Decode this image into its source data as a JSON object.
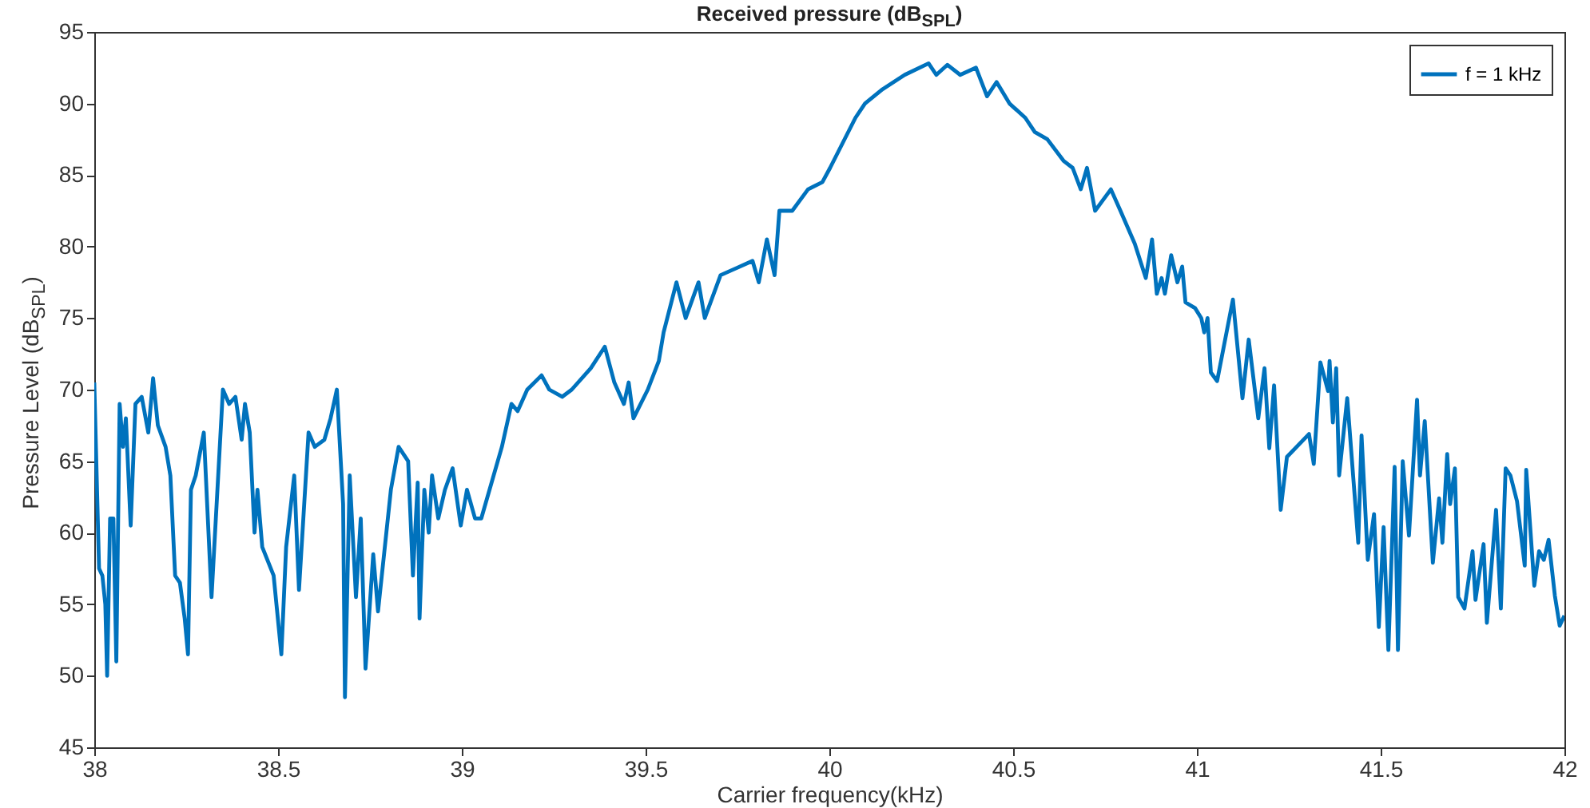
{
  "chart_data": {
    "type": "line",
    "title": "Received pressure (dB$_{SPL}$)",
    "xlabel": "Carrier frequency(kHz)",
    "ylabel": "Pressure Level (dB$_{SPL}$)",
    "xlim": [
      38,
      42
    ],
    "xticks": [
      38,
      38.5,
      39,
      39.5,
      40,
      40.5,
      41,
      41.5,
      42
    ],
    "ylim": [
      45,
      95
    ],
    "yticks": [
      45,
      50,
      55,
      60,
      65,
      70,
      75,
      80,
      85,
      90,
      95
    ],
    "legend": "top right",
    "grid": false,
    "series": [
      {
        "name": "f = 1 kHz",
        "color": "#0072bd",
        "x": [
          38.0,
          38.013,
          38.022,
          38.03,
          38.035,
          38.043,
          38.052,
          38.06,
          38.069,
          38.078,
          38.086,
          38.099,
          38.112,
          38.129,
          38.147,
          38.16,
          38.173,
          38.194,
          38.207,
          38.22,
          38.233,
          38.246,
          38.255,
          38.263,
          38.276,
          38.298,
          38.319,
          38.35,
          38.367,
          38.384,
          38.401,
          38.41,
          38.423,
          38.436,
          38.444,
          38.457,
          38.488,
          38.509,
          38.522,
          38.544,
          38.557,
          38.583,
          38.6,
          38.626,
          38.643,
          38.66,
          38.677,
          38.682,
          38.695,
          38.712,
          38.725,
          38.738,
          38.759,
          38.772,
          38.807,
          38.828,
          38.854,
          38.867,
          38.88,
          38.885,
          38.898,
          38.91,
          38.919,
          38.936,
          38.954,
          38.975,
          38.997,
          39.014,
          39.036,
          39.053,
          39.109,
          39.135,
          39.152,
          39.178,
          39.217,
          39.238,
          39.273,
          39.299,
          39.351,
          39.389,
          39.415,
          39.441,
          39.454,
          39.467,
          39.506,
          39.536,
          39.549,
          39.584,
          39.609,
          39.644,
          39.661,
          39.704,
          39.748,
          39.791,
          39.808,
          39.83,
          39.851,
          39.864,
          39.899,
          39.942,
          39.981,
          40.002,
          40.071,
          40.097,
          40.145,
          40.205,
          40.27,
          40.291,
          40.321,
          40.356,
          40.399,
          40.429,
          40.455,
          40.49,
          40.533,
          40.559,
          40.593,
          40.637,
          40.662,
          40.684,
          40.701,
          40.723,
          40.766,
          40.792,
          40.831,
          40.861,
          40.878,
          40.891,
          40.904,
          40.913,
          40.93,
          40.947,
          40.96,
          40.969,
          40.995,
          41.012,
          41.02,
          41.029,
          41.038,
          41.055,
          41.098,
          41.124,
          41.141,
          41.167,
          41.184,
          41.197,
          41.21,
          41.228,
          41.245,
          41.305,
          41.318,
          41.336,
          41.357,
          41.361,
          41.37,
          41.379,
          41.387,
          41.409,
          41.439,
          41.448,
          41.465,
          41.482,
          41.495,
          41.508,
          41.521,
          41.538,
          41.547,
          41.56,
          41.577,
          41.599,
          41.607,
          41.62,
          41.642,
          41.659,
          41.668,
          41.681,
          41.689,
          41.702,
          41.711,
          41.728,
          41.75,
          41.758,
          41.78,
          41.789,
          41.814,
          41.827,
          41.84,
          41.853,
          41.871,
          41.892,
          41.896,
          41.918,
          41.931,
          41.944,
          41.957,
          41.974,
          41.987,
          42.0
        ],
        "values": [
          70.5,
          57.5,
          57,
          55,
          50,
          61,
          61,
          51,
          69,
          66,
          68,
          60.5,
          69,
          69.5,
          67,
          70.8,
          67.5,
          66,
          64,
          57,
          56.5,
          54,
          51.5,
          63,
          64,
          67,
          55.5,
          70,
          69,
          69.5,
          66.5,
          69,
          67,
          60,
          63,
          59,
          57,
          51.5,
          59,
          64,
          56,
          67,
          66,
          66.5,
          68,
          70,
          62,
          48.5,
          64,
          55.5,
          61,
          50.5,
          58.5,
          54.5,
          63,
          66,
          65,
          57,
          63.5,
          54,
          63,
          60,
          64,
          61,
          63,
          64.5,
          60.5,
          63,
          61,
          61,
          66,
          69,
          68.5,
          70,
          71,
          70,
          69.5,
          70,
          71.5,
          73,
          70.5,
          69,
          70.5,
          68,
          70,
          72,
          74,
          77.5,
          75,
          77.5,
          75,
          78,
          78.5,
          79,
          77.5,
          80.5,
          78,
          82.5,
          82.5,
          84,
          84.5,
          85.5,
          89,
          90,
          91,
          92,
          92.8,
          92,
          92.7,
          92,
          92.5,
          90.5,
          91.5,
          90,
          89,
          88,
          87.5,
          86,
          85.5,
          84,
          85.5,
          82.5,
          84,
          82.5,
          80.2,
          77.8,
          80.5,
          76.7,
          77.8,
          76.7,
          79.4,
          77.5,
          78.6,
          76.1,
          75.7,
          75,
          74,
          75,
          71.2,
          70.6,
          76.3,
          69.4,
          73.5,
          68,
          71.5,
          65.9,
          70.3,
          61.6,
          65.3,
          66.9,
          64.8,
          71.9,
          69.9,
          72,
          67.7,
          71.5,
          64,
          69.4,
          59.3,
          66.8,
          58.1,
          61.3,
          53.4,
          60.4,
          51.8,
          64.6,
          51.8,
          65,
          59.8,
          69.3,
          64,
          67.8,
          57.9,
          62.4,
          59.3,
          65.5,
          62,
          64.5,
          55.5,
          54.7,
          58.7,
          55.3,
          59.2,
          53.7,
          61.6,
          54.7,
          64.5,
          64,
          62.2,
          57.7,
          64.4,
          56.3,
          58.7,
          58.1,
          59.5,
          55.6,
          53.5,
          54.2
        ]
      }
    ]
  }
}
